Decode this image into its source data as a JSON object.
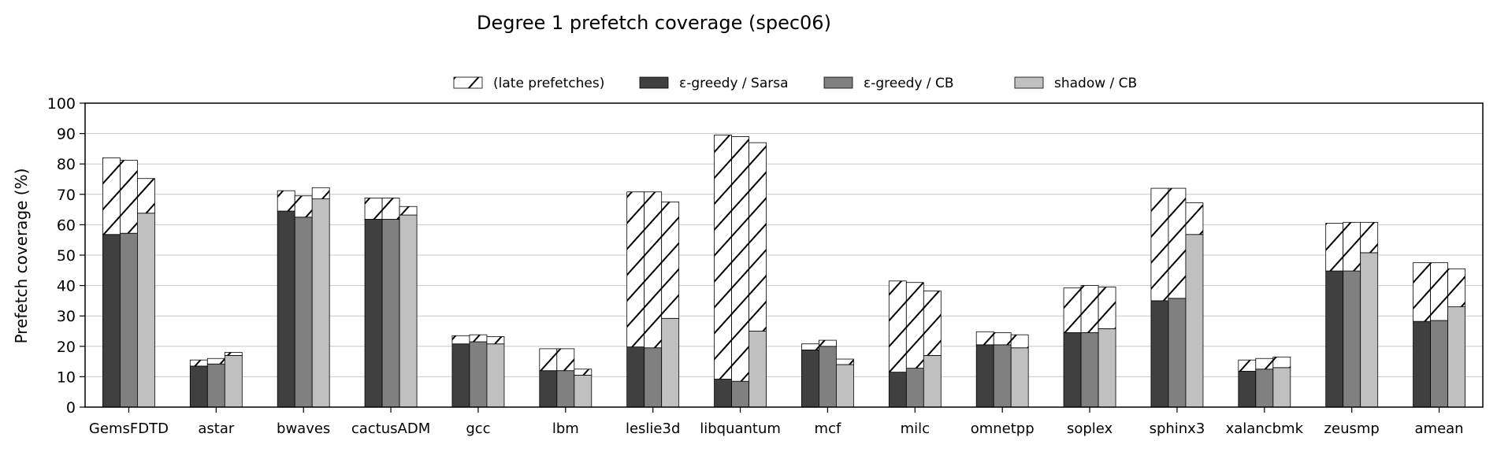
{
  "chart_data": {
    "type": "bar",
    "title": "Degree 1 prefetch coverage (spec06)",
    "xlabel": "",
    "ylabel": "Prefetch coverage (%)",
    "ylim": [
      0,
      100
    ],
    "yticks": [
      0,
      10,
      20,
      30,
      40,
      50,
      60,
      70,
      80,
      90,
      100
    ],
    "grid": "horizontal",
    "legend_position": "top-center",
    "categories": [
      "GemsFDTD",
      "astar",
      "bwaves",
      "cactusADM",
      "gcc",
      "lbm",
      "leslie3d",
      "libquantum",
      "mcf",
      "milc",
      "omnetpp",
      "soplex",
      "sphinx3",
      "xalancbmk",
      "zeusmp",
      "amean"
    ],
    "late_prefetch_legend": "(late prefetches)",
    "series": [
      {
        "name": "ε-greedy / Sarsa",
        "color": "#404040",
        "timely": [
          56.8,
          13.5,
          64.5,
          61.8,
          20.8,
          12.0,
          19.8,
          9.2,
          18.8,
          11.5,
          20.5,
          24.5,
          35.0,
          11.8,
          44.8,
          28.2
        ],
        "total": [
          82.0,
          15.5,
          71.2,
          68.8,
          23.5,
          19.2,
          70.8,
          89.5,
          20.8,
          41.5,
          24.8,
          39.2,
          72.0,
          15.5,
          60.5,
          47.5
        ]
      },
      {
        "name": "ε-greedy / CB",
        "color": "#808080",
        "timely": [
          57.2,
          14.2,
          62.5,
          61.8,
          21.5,
          12.0,
          19.5,
          8.5,
          20.0,
          12.8,
          20.5,
          24.5,
          35.8,
          12.5,
          44.8,
          28.5
        ],
        "total": [
          81.2,
          16.0,
          69.5,
          68.8,
          23.8,
          19.2,
          70.8,
          89.0,
          22.0,
          41.0,
          24.5,
          40.0,
          72.0,
          16.0,
          60.8,
          47.5
        ]
      },
      {
        "name": "shadow / CB",
        "color": "#c0c0c0",
        "timely": [
          63.8,
          17.0,
          68.5,
          63.2,
          20.8,
          10.5,
          29.2,
          25.0,
          14.0,
          17.0,
          19.5,
          25.8,
          56.8,
          13.0,
          50.8,
          33.0
        ],
        "total": [
          75.2,
          18.0,
          72.2,
          66.0,
          23.2,
          12.5,
          67.5,
          87.0,
          15.8,
          38.2,
          23.8,
          39.5,
          67.2,
          16.5,
          60.8,
          45.5
        ]
      }
    ]
  }
}
